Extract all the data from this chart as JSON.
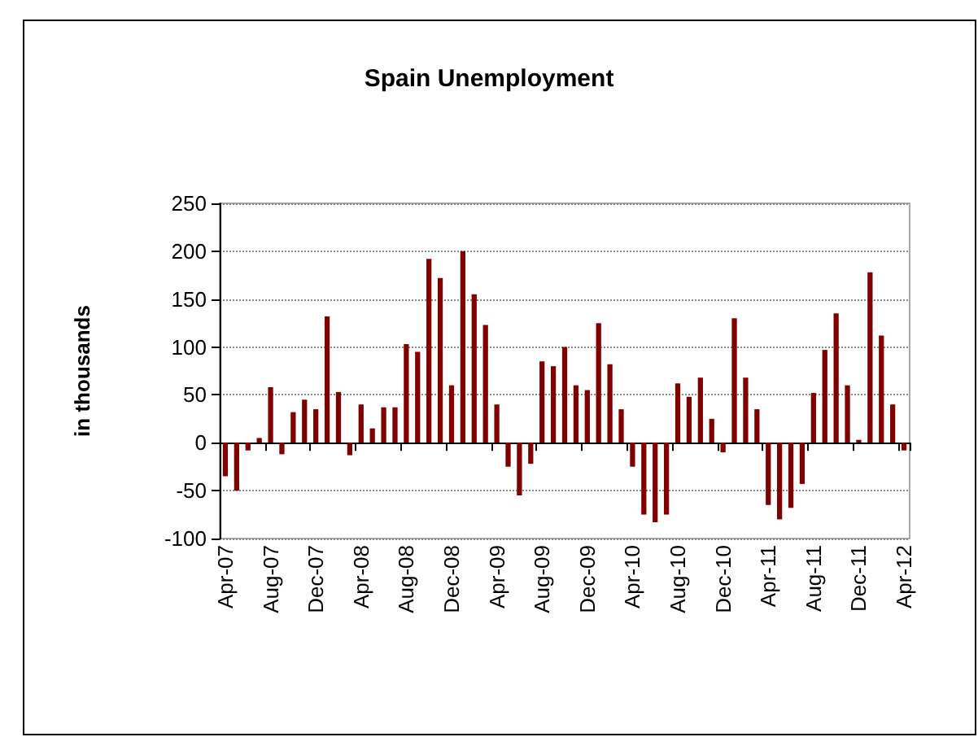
{
  "chart_data": {
    "type": "bar",
    "title": "Spain Unemployment",
    "ylabel": "in thousands",
    "categories": [
      "Apr-07",
      null,
      null,
      null,
      "Aug-07",
      null,
      null,
      null,
      "Dec-07",
      null,
      null,
      null,
      "Apr-08",
      null,
      null,
      null,
      "Aug-08",
      null,
      null,
      null,
      "Dec-08",
      null,
      null,
      null,
      "Apr-09",
      null,
      null,
      null,
      "Aug-09",
      null,
      null,
      null,
      "Dec-09",
      null,
      null,
      null,
      "Apr-10",
      null,
      null,
      null,
      "Aug-10",
      null,
      null,
      null,
      "Dec-10",
      null,
      null,
      null,
      "Apr-11",
      null,
      null,
      null,
      "Aug-11",
      null,
      null,
      null,
      "Dec-11",
      null,
      null,
      null,
      "Apr-12"
    ],
    "values": [
      -35,
      -50,
      -8,
      5,
      58,
      -12,
      32,
      45,
      35,
      132,
      53,
      -13,
      40,
      15,
      37,
      37,
      103,
      95,
      192,
      172,
      60,
      200,
      155,
      123,
      40,
      -25,
      -55,
      -22,
      85,
      80,
      100,
      60,
      55,
      125,
      82,
      35,
      -25,
      -75,
      -83,
      -75,
      62,
      48,
      68,
      25,
      -10,
      130,
      68,
      35,
      -65,
      -80,
      -68,
      -43,
      52,
      97,
      135,
      60,
      3,
      178,
      112,
      40,
      -8
    ],
    "color": "#800000",
    "ylim": [
      -100,
      250
    ],
    "yticks": [
      -100,
      -50,
      0,
      50,
      100,
      150,
      200,
      250
    ],
    "grid": "y"
  }
}
